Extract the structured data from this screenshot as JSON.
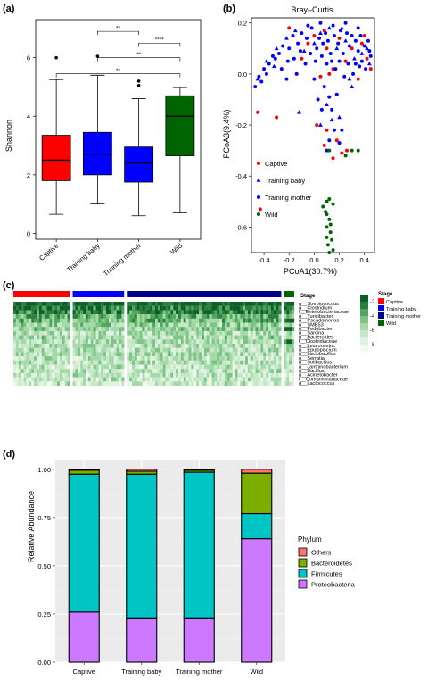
{
  "panel_labels": [
    "(a)",
    "(b)",
    "(c)",
    "(d)"
  ],
  "chart_data": [
    {
      "panel": "(a)",
      "type": "box",
      "title": "",
      "ylabel": "Shannon",
      "ylim": [
        -0.2,
        7.3
      ],
      "yticks": [
        0,
        2,
        4,
        6
      ],
      "categories": [
        "Captive",
        "Training baby",
        "Training mother",
        "Wild"
      ],
      "colors": [
        "#ff0000",
        "#0000ff",
        "#0000ff",
        "#006400"
      ],
      "boxes": [
        {
          "min": 0.65,
          "q1": 1.8,
          "median": 2.5,
          "q3": 3.35,
          "max": 5.25,
          "outliers": [
            6.0
          ]
        },
        {
          "min": 1.0,
          "q1": 2.0,
          "median": 2.7,
          "q3": 3.45,
          "max": 5.4,
          "outliers": [
            6.05
          ]
        },
        {
          "min": 0.6,
          "q1": 1.75,
          "median": 2.4,
          "q3": 2.95,
          "max": 4.6,
          "outliers": [
            5.05,
            5.2
          ]
        },
        {
          "min": 0.7,
          "q1": 2.65,
          "median": 4.0,
          "q3": 4.7,
          "max": 4.98,
          "outliers": []
        }
      ],
      "significance": [
        {
          "from": 1,
          "to": 2,
          "level": 6.9,
          "label": "**"
        },
        {
          "from": 2,
          "to": 3,
          "level": 6.5,
          "label": "****"
        },
        {
          "from": 1,
          "to": 3,
          "level": 6.0,
          "label": "**"
        },
        {
          "from": 0,
          "to": 3,
          "level": 5.45,
          "label": "**"
        }
      ]
    },
    {
      "panel": "(b)",
      "type": "scatter",
      "title": "Bray–Curtis",
      "xlabel": "PCoA1(30.7%)",
      "ylabel": "PCoA3(9.4%)",
      "xlim": [
        -0.5,
        0.48
      ],
      "ylim": [
        -0.7,
        0.22
      ],
      "xticks": [
        -0.4,
        -0.2,
        0.0,
        0.2,
        0.4
      ],
      "yticks": [
        0.2,
        0.0,
        -0.2,
        -0.4,
        -0.6
      ],
      "xtick_labels": [
        "-0.4",
        "-0.2",
        "0.0",
        "0.2",
        "0.4"
      ],
      "ytick_labels": [
        "0.2",
        "0.0",
        "-0.2",
        "-0.4",
        "-0.6"
      ],
      "legend": [
        {
          "name": "Captive",
          "color": "#ff0000",
          "shape": "circle"
        },
        {
          "name": "Training baby",
          "color": "#0000ff",
          "shape": "triangle"
        },
        {
          "name": "Training mother",
          "color": "#0000ff",
          "shape": "circle"
        },
        {
          "name": "Wild",
          "color": "#006400",
          "shape": "circle"
        }
      ],
      "series": [
        {
          "name": "Captive",
          "points": [
            [
              -0.05,
              0.12
            ],
            [
              0.0,
              0.15
            ],
            [
              0.08,
              0.17
            ],
            [
              0.1,
              0.1
            ],
            [
              0.2,
              0.14
            ],
            [
              0.25,
              0.05
            ],
            [
              0.3,
              0.1
            ],
            [
              0.38,
              0.12
            ],
            [
              0.42,
              0.06
            ],
            [
              0.15,
              0.02
            ],
            [
              -0.2,
              0.18
            ],
            [
              -0.1,
              0.06
            ],
            [
              0.05,
              -0.01
            ],
            [
              0.35,
              -0.02
            ],
            [
              0.4,
              0.15
            ],
            [
              0.45,
              0.02
            ],
            [
              0.12,
              0.0
            ],
            [
              -0.45,
              -0.15
            ],
            [
              -0.3,
              -0.17
            ],
            [
              0.02,
              -0.2
            ],
            [
              0.1,
              -0.22
            ],
            [
              0.18,
              -0.26
            ],
            [
              0.08,
              -0.28
            ],
            [
              0.15,
              -0.33
            ],
            [
              0.22,
              -0.31
            ],
            [
              0.26,
              -0.3
            ],
            [
              -0.43,
              -0.53
            ]
          ]
        },
        {
          "name": "Training baby",
          "points": [
            [
              -0.45,
              -0.02
            ],
            [
              -0.38,
              0.05
            ],
            [
              -0.3,
              0.1
            ],
            [
              -0.22,
              0.14
            ],
            [
              -0.15,
              0.17
            ],
            [
              -0.08,
              0.09
            ],
            [
              0.0,
              0.12
            ],
            [
              0.05,
              0.16
            ],
            [
              0.12,
              0.18
            ],
            [
              0.18,
              0.1
            ],
            [
              0.25,
              0.13
            ],
            [
              0.32,
              0.06
            ],
            [
              0.38,
              0.08
            ],
            [
              0.44,
              0.04
            ],
            [
              0.28,
              -0.02
            ],
            [
              0.1,
              -0.12
            ],
            [
              0.14,
              -0.18
            ],
            [
              0.2,
              -0.17
            ],
            [
              0.05,
              -0.2
            ],
            [
              -0.12,
              -0.15
            ],
            [
              0.3,
              -0.05
            ],
            [
              -0.32,
              0.03
            ],
            [
              0.42,
              0.1
            ],
            [
              0.22,
              0.18
            ]
          ]
        },
        {
          "name": "Training mother",
          "points": [
            [
              -0.47,
              -0.05
            ],
            [
              -0.44,
              -0.01
            ],
            [
              -0.4,
              0.02
            ],
            [
              -0.36,
              0.04
            ],
            [
              -0.33,
              0.07
            ],
            [
              -0.28,
              0.08
            ],
            [
              -0.25,
              0.11
            ],
            [
              -0.2,
              0.1
            ],
            [
              -0.17,
              0.15
            ],
            [
              -0.13,
              0.12
            ],
            [
              -0.1,
              0.16
            ],
            [
              -0.06,
              0.14
            ],
            [
              -0.02,
              0.18
            ],
            [
              0.02,
              0.1
            ],
            [
              0.04,
              0.14
            ],
            [
              0.07,
              0.12
            ],
            [
              0.09,
              0.16
            ],
            [
              0.11,
              0.13
            ],
            [
              0.13,
              0.08
            ],
            [
              0.16,
              0.15
            ],
            [
              0.19,
              0.12
            ],
            [
              0.21,
              0.17
            ],
            [
              0.23,
              0.08
            ],
            [
              0.26,
              0.16
            ],
            [
              0.28,
              0.11
            ],
            [
              0.3,
              0.15
            ],
            [
              0.33,
              0.13
            ],
            [
              0.35,
              0.09
            ],
            [
              0.37,
              0.15
            ],
            [
              0.4,
              0.11
            ],
            [
              0.43,
              0.13
            ],
            [
              0.45,
              0.07
            ],
            [
              0.41,
              0.02
            ],
            [
              0.36,
              0.03
            ],
            [
              0.31,
              0.0
            ],
            [
              0.27,
              0.04
            ],
            [
              0.24,
              -0.01
            ],
            [
              0.2,
              0.05
            ],
            [
              0.17,
              0.02
            ],
            [
              0.14,
              0.05
            ],
            [
              0.1,
              0.04
            ],
            [
              0.06,
              0.07
            ],
            [
              0.01,
              0.05
            ],
            [
              -0.03,
              0.08
            ],
            [
              -0.07,
              0.04
            ],
            [
              -0.11,
              0.09
            ],
            [
              -0.16,
              0.06
            ],
            [
              -0.21,
              0.05
            ],
            [
              -0.26,
              0.02
            ],
            [
              -0.31,
              0.06
            ],
            [
              -0.38,
              0.0
            ],
            [
              -0.42,
              -0.03
            ],
            [
              0.05,
              0.2
            ],
            [
              0.15,
              0.19
            ],
            [
              0.25,
              0.2
            ],
            [
              0.35,
              0.18
            ],
            [
              -0.05,
              0.19
            ],
            [
              0.08,
              -0.05
            ],
            [
              0.12,
              -0.09
            ],
            [
              0.18,
              -0.08
            ],
            [
              0.06,
              -0.14
            ],
            [
              0.16,
              -0.22
            ],
            [
              0.12,
              -0.26
            ],
            [
              0.1,
              -0.3
            ],
            [
              0.2,
              -0.27
            ],
            [
              0.14,
              -0.14
            ],
            [
              0.22,
              -0.22
            ],
            [
              0.03,
              -0.1
            ],
            [
              0.38,
              0.05
            ],
            [
              0.44,
              0.09
            ],
            [
              0.33,
              0.04
            ],
            [
              -0.14,
              0.0
            ],
            [
              -0.22,
              -0.02
            ],
            [
              0.0,
              -0.02
            ]
          ]
        },
        {
          "name": "Wild",
          "points": [
            [
              0.3,
              -0.3
            ],
            [
              0.35,
              -0.3
            ],
            [
              0.12,
              -0.3
            ],
            [
              0.25,
              -0.32
            ],
            [
              0.1,
              -0.5
            ],
            [
              0.12,
              -0.49
            ],
            [
              0.15,
              -0.51
            ],
            [
              0.07,
              -0.52
            ],
            [
              0.09,
              -0.54
            ],
            [
              0.12,
              -0.57
            ],
            [
              0.13,
              -0.59
            ],
            [
              0.1,
              -0.6
            ],
            [
              0.13,
              -0.62
            ],
            [
              0.1,
              -0.64
            ],
            [
              0.14,
              -0.65
            ],
            [
              0.11,
              -0.67
            ],
            [
              0.15,
              -0.69
            ],
            [
              0.12,
              -0.7
            ],
            [
              0.1,
              -0.55
            ]
          ]
        }
      ]
    },
    {
      "panel": "(c)",
      "type": "heatmap",
      "rows": [
        "g__Streptococcus",
        "g__Clostridium",
        "f__Enterobacteriaceae",
        "g__Turicibacter",
        "g__Pseudomonas",
        "g__SMB53",
        "g__Pedobacter",
        "g__Sarcina",
        "g__Bacteroides",
        "f__Clostridiaceae",
        "g__Leuconostoc",
        "g__Epulopiscium",
        "g__Lactobacillus",
        "g__Serratia",
        "g__Solibacillus",
        "g__Janthinobacterium",
        "g__Bacillus",
        "g__Acinetobacter",
        "f__Comamonadaceae",
        "g__Lactococcus"
      ],
      "stage_groups": [
        {
          "name": "Captive",
          "color": "#ff0000",
          "columns": 22
        },
        {
          "name": "Training baby",
          "color": "#0000ff",
          "columns": 20
        },
        {
          "name": "Training mother",
          "color": "#00008b",
          "columns": 60
        },
        {
          "name": "Wild",
          "color": "#006400",
          "columns": 4
        }
      ],
      "stage_label": "Stage",
      "legend_stage_title": "Stage",
      "legend_stages": [
        "Captive",
        "Training baby",
        "Training mother",
        "Wild"
      ],
      "colorbar_ticks": [
        "-2",
        "-4",
        "-6",
        "-8"
      ],
      "colorbar_range": [
        -9,
        -1
      ]
    },
    {
      "panel": "(d)",
      "type": "stacked_bar",
      "title": "",
      "ylabel": "Relative Abundance",
      "ylim": [
        0,
        1.05
      ],
      "yticks": [
        0.0,
        0.25,
        0.5,
        0.75,
        1.0
      ],
      "ytick_labels": [
        "0.00",
        "0.25",
        "0.50",
        "0.75",
        "1.00"
      ],
      "categories": [
        "Captive",
        "Training baby",
        "Training mother",
        "Wild"
      ],
      "legend_title": "Phylum",
      "series": [
        {
          "name": "Proteobacteria",
          "color": "#cc79ff",
          "values": [
            0.26,
            0.23,
            0.23,
            0.64
          ]
        },
        {
          "name": "Firmicutes",
          "color": "#00c5c5",
          "values": [
            0.715,
            0.745,
            0.755,
            0.13
          ]
        },
        {
          "name": "Bacteroidetes",
          "color": "#7cae00",
          "values": [
            0.02,
            0.015,
            0.01,
            0.21
          ]
        },
        {
          "name": "Others",
          "color": "#f8766d",
          "values": [
            0.005,
            0.01,
            0.005,
            0.02
          ]
        }
      ],
      "legend_order": [
        "Others",
        "Bacteroidetes",
        "Firmicutes",
        "Proteobacteria"
      ]
    }
  ]
}
